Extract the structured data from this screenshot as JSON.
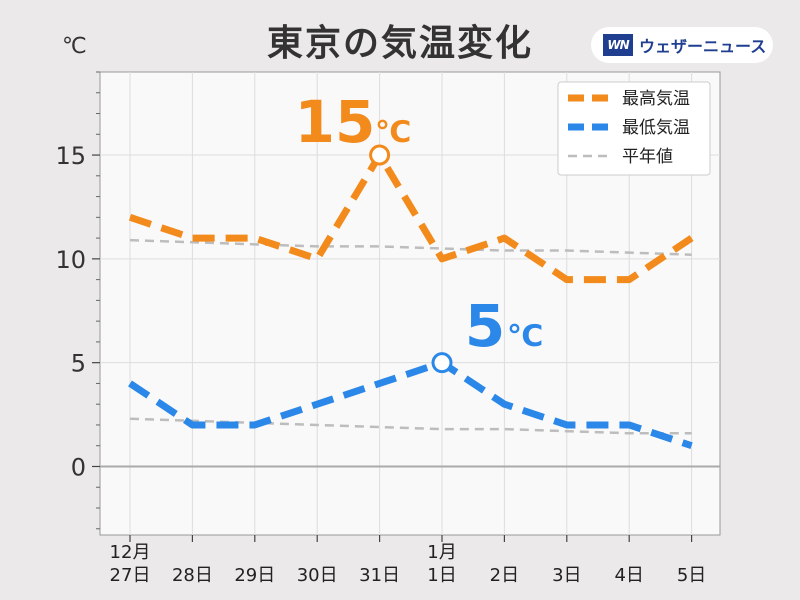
{
  "title": "東京の気温変化",
  "unit": "℃",
  "brand": {
    "logo": "WN",
    "name": "ウェザーニュース"
  },
  "colors": {
    "high": "#f28a1c",
    "low": "#2b88e8",
    "normal": "#bdbdbd",
    "holiday": "#e8303a",
    "saturday": "#1f4fe0",
    "weekday": "#222222"
  },
  "chart_data": {
    "type": "line",
    "title": "東京の気温変化",
    "ylabel": "℃",
    "ylim": [
      -3.3,
      19
    ],
    "yticks": [
      0,
      5,
      10,
      15
    ],
    "grid": true,
    "legend_position": "top-right",
    "x_month_labels": [
      {
        "index": 0,
        "label": "12月"
      },
      {
        "index": 5,
        "label": "1月"
      }
    ],
    "categories": [
      "27日",
      "28日",
      "29日",
      "30日",
      "31日",
      "1日",
      "2日",
      "3日",
      "4日",
      "5日"
    ],
    "category_kinds": [
      "weekday",
      "saturday",
      "holiday",
      "weekday",
      "weekday",
      "holiday",
      "weekday",
      "weekday",
      "saturday",
      "holiday"
    ],
    "series": [
      {
        "name": "最高気温",
        "color": "#f28a1c",
        "style": "dashed-bold",
        "values": [
          12,
          11,
          11,
          10,
          15,
          10,
          11,
          9,
          9,
          11
        ]
      },
      {
        "name": "最低気温",
        "color": "#2b88e8",
        "style": "dashed-bold",
        "values": [
          4,
          2,
          2,
          3,
          4,
          5,
          3,
          2,
          2,
          1
        ]
      },
      {
        "name": "平年値",
        "color": "#bdbdbd",
        "style": "dashed-thin",
        "values": [
          10.9,
          10.8,
          10.7,
          10.6,
          10.6,
          10.5,
          10.4,
          10.4,
          10.3,
          10.2
        ]
      },
      {
        "name": "平年値",
        "color": "#bdbdbd",
        "style": "dashed-thin",
        "legend": false,
        "values": [
          2.3,
          2.2,
          2.1,
          2.0,
          1.9,
          1.8,
          1.8,
          1.7,
          1.6,
          1.6
        ]
      }
    ],
    "annotations": [
      {
        "series": 0,
        "index": 4,
        "value": "15",
        "unit": "℃"
      },
      {
        "series": 1,
        "index": 5,
        "value": "5",
        "unit": "℃"
      }
    ]
  }
}
